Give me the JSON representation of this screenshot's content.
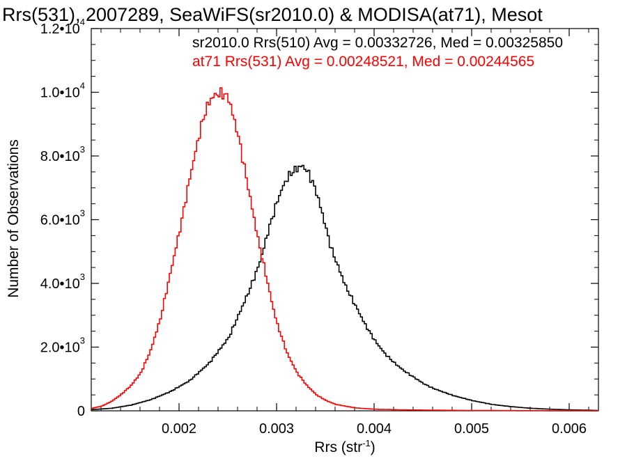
{
  "chart_data": {
    "type": "line",
    "title": "Rrs(531), 2007289, SeaWiFS(sr2010.0) & MODISA(at71), Mesot",
    "xlabel": "Rrs (str",
    "xlabel_sup": "-1",
    "xlabel_close": ")",
    "ylabel": "Number of Observations",
    "xlim": [
      0.0011,
      0.0063
    ],
    "ylim": [
      0,
      12000
    ],
    "x_ticks": [
      {
        "value": 0.002,
        "label": "0.002"
      },
      {
        "value": 0.003,
        "label": "0.003"
      },
      {
        "value": 0.004,
        "label": "0.004"
      },
      {
        "value": 0.005,
        "label": "0.005"
      },
      {
        "value": 0.006,
        "label": "0.006"
      }
    ],
    "y_ticks": [
      {
        "value": 0,
        "mant": "0",
        "exp": ""
      },
      {
        "value": 2000,
        "mant": "2.0•10",
        "exp": "3"
      },
      {
        "value": 4000,
        "mant": "4.0•10",
        "exp": "3"
      },
      {
        "value": 6000,
        "mant": "6.0•10",
        "exp": "3"
      },
      {
        "value": 8000,
        "mant": "8.0•10",
        "exp": "3"
      },
      {
        "value": 10000,
        "mant": "1.0•10",
        "exp": "4"
      },
      {
        "value": 12000,
        "mant": "1.2•10",
        "exp": "4"
      }
    ],
    "grid": false,
    "legend_position": "top-right",
    "annotations": [
      {
        "text": "sr2010.0 Rrs(510) Avg = 0.00332726, Med = 0.00325850",
        "color": "#000000"
      },
      {
        "text": "at71 Rrs(531) Avg = 0.00248521, Med = 0.00244565",
        "color": "#ff0000"
      }
    ],
    "series": [
      {
        "color": "#000000",
        "step": true,
        "x": [
          0.0011,
          0.0013,
          0.0015,
          0.0017,
          0.0019,
          0.0021,
          0.0023,
          0.0025,
          0.0026,
          0.0027,
          0.0028,
          0.00285,
          0.0029,
          0.00295,
          0.003,
          0.00305,
          0.0031,
          0.00315,
          0.0032,
          0.00325,
          0.0033,
          0.00335,
          0.0034,
          0.00345,
          0.0035,
          0.00355,
          0.0036,
          0.0037,
          0.0038,
          0.0039,
          0.004,
          0.0041,
          0.0042,
          0.0043,
          0.0044,
          0.0045,
          0.0046,
          0.0048,
          0.005,
          0.0052,
          0.0054,
          0.0056,
          0.0058,
          0.006,
          0.0063
        ],
        "y": [
          40,
          80,
          180,
          350,
          600,
          950,
          1500,
          2300,
          3000,
          3700,
          4500,
          5000,
          5600,
          6100,
          6600,
          7000,
          7300,
          7500,
          7600,
          7700,
          7550,
          7250,
          6850,
          6300,
          5700,
          5100,
          4700,
          3900,
          3300,
          2700,
          2200,
          1800,
          1500,
          1250,
          1050,
          850,
          700,
          480,
          320,
          200,
          130,
          80,
          50,
          30,
          10
        ]
      },
      {
        "color": "#ff0000",
        "step": true,
        "x": [
          0.0011,
          0.0012,
          0.0013,
          0.0014,
          0.0015,
          0.0016,
          0.0017,
          0.0018,
          0.0019,
          0.002,
          0.00205,
          0.0021,
          0.00215,
          0.0022,
          0.00225,
          0.0023,
          0.00235,
          0.0024,
          0.00245,
          0.0025,
          0.00255,
          0.0026,
          0.00265,
          0.0027,
          0.00275,
          0.0028,
          0.00285,
          0.0029,
          0.00295,
          0.003,
          0.0031,
          0.0032,
          0.0033,
          0.0034,
          0.0035,
          0.0036,
          0.0038,
          0.004,
          0.0043,
          0.0046,
          0.005,
          0.0055,
          0.0063
        ],
        "y": [
          80,
          150,
          300,
          520,
          800,
          1200,
          1900,
          2900,
          4300,
          5700,
          6500,
          7300,
          8000,
          8700,
          9300,
          9700,
          9900,
          9950,
          9950,
          9800,
          9200,
          8600,
          7800,
          7000,
          6200,
          5400,
          4700,
          4000,
          3300,
          2700,
          1800,
          1200,
          800,
          500,
          320,
          200,
          90,
          50,
          30,
          20,
          10,
          5,
          0
        ]
      }
    ]
  }
}
